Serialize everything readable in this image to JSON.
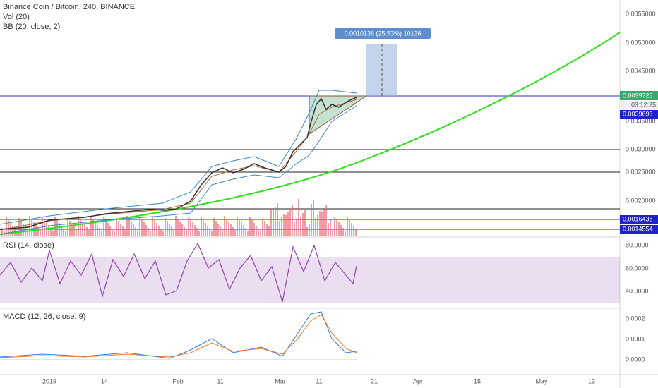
{
  "header": {
    "symbol": "Binance Coin / Bitcoin, 240, BINANCE",
    "volume": "Vol (20)",
    "bollinger": "BB (20, close, 2)"
  },
  "measure": "0.0010136 (25.53%) 10136",
  "price_axis": {
    "labels": [
      "0.0055000",
      "0.0050000",
      "0.0045000",
      "0.0035000",
      "0.0030000",
      "0.0025000",
      "0.0020000"
    ],
    "last_price": "0.0039728",
    "countdown": "03:12:25",
    "level_badges": [
      "0.0039696",
      "0.0016438",
      "0.0014554"
    ]
  },
  "rsi": {
    "title": "RSI (14, close)",
    "labels": [
      "80.0000",
      "60.0000",
      "40.0000"
    ]
  },
  "macd": {
    "title": "MACD (12, 26, close, 9)",
    "labels": [
      "0.0002",
      "0.0001",
      "0.0000"
    ]
  },
  "time_axis": [
    "2019",
    "14",
    "Feb",
    "11",
    "Mar",
    "11",
    "21",
    "Apr",
    "15",
    "May",
    "13"
  ]
}
